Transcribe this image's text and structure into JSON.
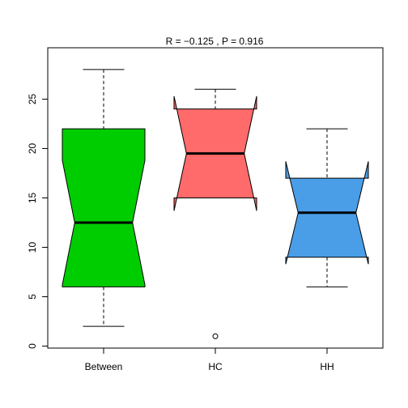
{
  "chart_data": {
    "type": "boxplot",
    "title": "R =  −0.125 ,  P =  0.916",
    "xlabel": "",
    "ylabel": "",
    "ylim": [
      -0.2,
      30.2
    ],
    "yticks": [
      0,
      5,
      10,
      15,
      20,
      25
    ],
    "notched": true,
    "categories": [
      "Between",
      "HC",
      "HH"
    ],
    "boxes": [
      {
        "name": "Between",
        "color": "#00cd00",
        "whisker_low": 2,
        "q1": 6,
        "median": 12.5,
        "q3": 22,
        "whisker_high": 28,
        "notch_low": 6.2,
        "notch_high": 18.8,
        "outliers": []
      },
      {
        "name": "HC",
        "color": "#ff6a6a",
        "whisker_low": 15,
        "q1": 15,
        "median": 19.5,
        "q3": 24,
        "whisker_high": 26,
        "notch_low": 13.7,
        "notch_high": 25.3,
        "outliers": [
          1
        ]
      },
      {
        "name": "HH",
        "color": "#4a9ee8",
        "whisker_low": 6,
        "q1": 9,
        "median": 13.5,
        "q3": 17,
        "whisker_high": 22,
        "notch_low": 8.3,
        "notch_high": 18.7,
        "outliers": []
      }
    ]
  }
}
